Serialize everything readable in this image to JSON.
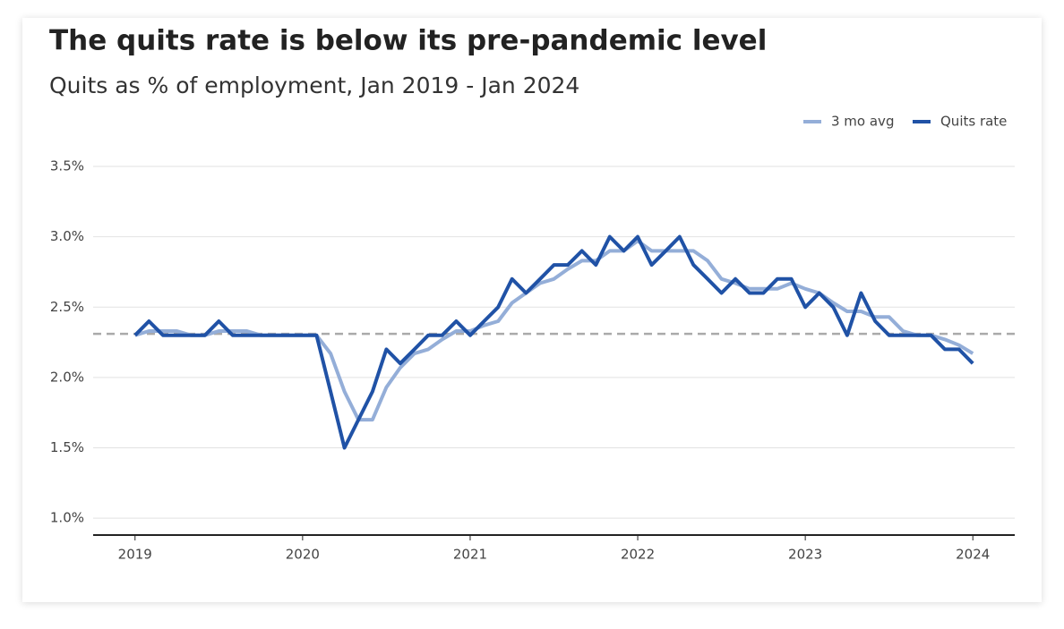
{
  "chart_data": {
    "type": "line",
    "title": "The quits rate is below its pre-pandemic level",
    "subtitle": "Quits as % of employment, Jan 2019 - Jan 2024",
    "x": [
      2019,
      2019.083,
      2019.167,
      2019.25,
      2019.333,
      2019.417,
      2019.5,
      2019.583,
      2019.667,
      2019.75,
      2019.833,
      2019.917,
      2020,
      2020.083,
      2020.167,
      2020.25,
      2020.333,
      2020.417,
      2020.5,
      2020.583,
      2020.667,
      2020.75,
      2020.833,
      2020.917,
      2021,
      2021.083,
      2021.167,
      2021.25,
      2021.333,
      2021.417,
      2021.5,
      2021.583,
      2021.667,
      2021.75,
      2021.833,
      2021.917,
      2022,
      2022.083,
      2022.167,
      2022.25,
      2022.333,
      2022.417,
      2022.5,
      2022.583,
      2022.667,
      2022.75,
      2022.833,
      2022.917,
      2023,
      2023.083,
      2023.167,
      2023.25,
      2023.333,
      2023.417,
      2023.5,
      2023.583,
      2023.667,
      2023.75,
      2023.833,
      2023.917,
      2024
    ],
    "series": [
      {
        "name": "3 mo avg",
        "color": "#94aed8",
        "values": [
          2.3,
          2.33,
          2.33,
          2.33,
          2.3,
          2.3,
          2.33,
          2.33,
          2.33,
          2.3,
          2.3,
          2.3,
          2.3,
          2.3,
          2.17,
          1.9,
          1.7,
          1.7,
          1.93,
          2.07,
          2.17,
          2.2,
          2.27,
          2.33,
          2.33,
          2.37,
          2.4,
          2.53,
          2.6,
          2.67,
          2.7,
          2.77,
          2.83,
          2.83,
          2.9,
          2.9,
          2.97,
          2.9,
          2.9,
          2.9,
          2.9,
          2.83,
          2.7,
          2.67,
          2.63,
          2.63,
          2.63,
          2.67,
          2.63,
          2.6,
          2.53,
          2.47,
          2.47,
          2.43,
          2.43,
          2.33,
          2.3,
          2.3,
          2.27,
          2.23,
          2.17
        ]
      },
      {
        "name": "Quits rate",
        "color": "#2052a6",
        "values": [
          2.3,
          2.4,
          2.3,
          2.3,
          2.3,
          2.3,
          2.4,
          2.3,
          2.3,
          2.3,
          2.3,
          2.3,
          2.3,
          2.3,
          1.9,
          1.5,
          1.7,
          1.9,
          2.2,
          2.1,
          2.2,
          2.3,
          2.3,
          2.4,
          2.3,
          2.4,
          2.5,
          2.7,
          2.6,
          2.7,
          2.8,
          2.8,
          2.9,
          2.8,
          3.0,
          2.9,
          3.0,
          2.8,
          2.9,
          3.0,
          2.8,
          2.7,
          2.6,
          2.7,
          2.6,
          2.6,
          2.7,
          2.7,
          2.5,
          2.6,
          2.5,
          2.3,
          2.6,
          2.4,
          2.3,
          2.3,
          2.3,
          2.3,
          2.2,
          2.2,
          2.1
        ]
      }
    ],
    "reference_line": 2.31,
    "xlim": [
      2018.75,
      2024.25
    ],
    "xticks": [
      2019,
      2020,
      2021,
      2022,
      2023,
      2024
    ],
    "ylim": [
      0.88,
      3.5
    ],
    "yticks": [
      {
        "value": 1.0,
        "label": "1.0%"
      },
      {
        "value": 1.5,
        "label": "1.5%"
      },
      {
        "value": 2.0,
        "label": "2.0%"
      },
      {
        "value": 2.5,
        "label": "2.5%"
      },
      {
        "value": 3.0,
        "label": "3.0%"
      },
      {
        "value": 3.5,
        "label": "3.5%"
      }
    ],
    "grid": true,
    "legend": "top-right"
  }
}
